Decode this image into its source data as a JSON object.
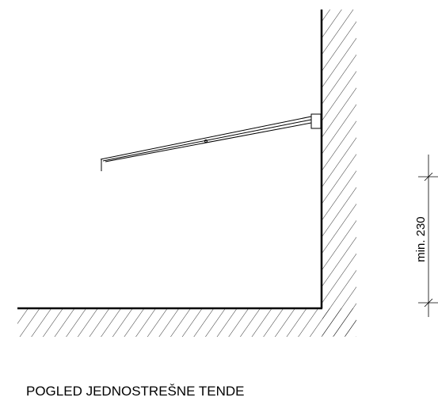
{
  "dimension": {
    "label": "min. 230"
  },
  "caption": "POGLED JEDNOSTREŠNE TENDE"
}
